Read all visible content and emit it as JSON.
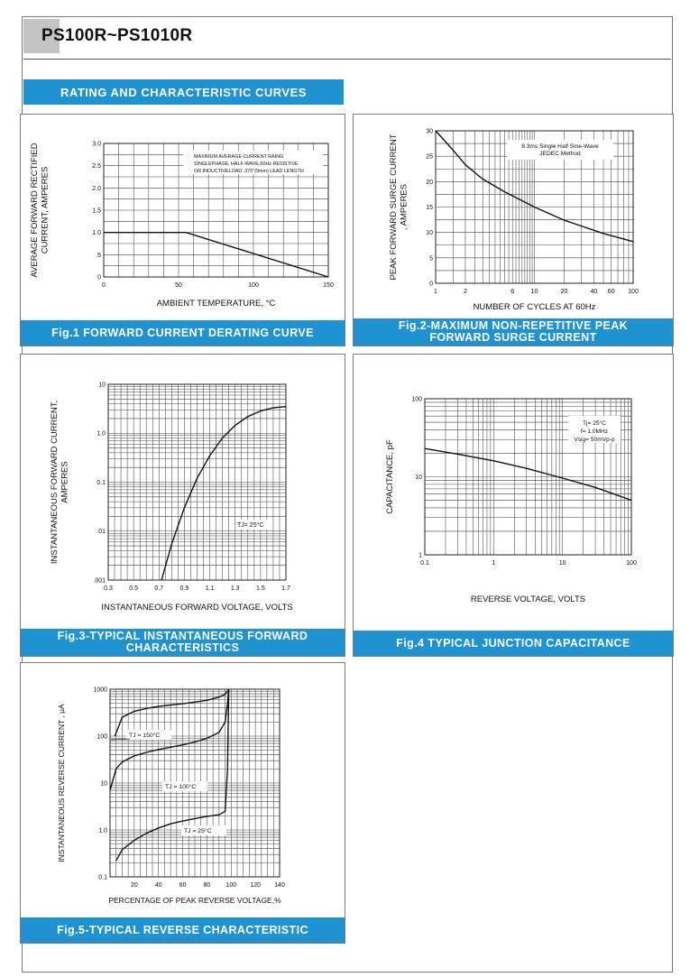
{
  "header": {
    "title": "PS100R~PS1010R",
    "section": "RATING AND CHARACTERISTIC CURVES"
  },
  "chart_data": [
    {
      "id": "fig1",
      "type": "line",
      "caption": "Fig.1 FORWARD CURRENT DERATING CURVE",
      "xlabel": "AMBIENT TEMPERATURE, °C",
      "ylabel": [
        "AVERAGE FORWARD RECTIFIED",
        "CURRENT, AMPERES"
      ],
      "xlim": [
        0,
        150
      ],
      "ylim": [
        0,
        3.0
      ],
      "xticks": [
        0,
        50,
        100,
        150
      ],
      "xtick_labels": [
        "0",
        "50",
        "100",
        "150"
      ],
      "yticks": [
        0,
        0.5,
        1.0,
        1.5,
        2.0,
        2.5,
        3.0
      ],
      "ytick_labels": [
        "0",
        ".5",
        "1.0",
        "1.5",
        "2.0",
        "2.5",
        "3.0"
      ],
      "annotation": [
        "MAXIMUM AVERAGE CURRENT RAING",
        "SINGLEPHASE, HALF-WAVE,60Hz RESISTIVE",
        "OR INDUCTIVELOAD .375\"(9mm) LEAD LENGTH"
      ],
      "series": [
        {
          "x": [
            0,
            55,
            150
          ],
          "y": [
            1.0,
            1.0,
            0
          ]
        }
      ]
    },
    {
      "id": "fig2",
      "type": "line",
      "caption": [
        "Fig.2-MAXIMUM NON-REPETITIVE PEAK",
        "FORWARD SURGE CURRENT"
      ],
      "xlabel": "NUMBER OF CYCLES AT 60Hz",
      "ylabel": [
        "PEAK FORWARD SURGE CURRENT",
        ", AMPERES"
      ],
      "xscale": "log",
      "xlim": [
        1,
        100
      ],
      "ylim": [
        0,
        30
      ],
      "xticks": [
        1,
        2,
        6,
        10,
        20,
        40,
        60,
        100
      ],
      "xtick_labels": [
        "1",
        "2",
        "6",
        "10",
        "20",
        "40",
        "60",
        "100"
      ],
      "yticks": [
        0,
        5,
        10,
        15,
        20,
        25,
        30
      ],
      "ytick_labels": [
        "0",
        "5",
        "10",
        "15",
        "20",
        "25",
        "30"
      ],
      "annotation": [
        "8.3ms Single Half Sine-Wave",
        "JEDEC Method"
      ],
      "series": [
        {
          "x": [
            1,
            1.5,
            2,
            3,
            5,
            10,
            20,
            50,
            100
          ],
          "y": [
            30,
            26.2,
            23.3,
            20.5,
            18,
            15,
            12.4,
            9.8,
            8.2
          ]
        }
      ]
    },
    {
      "id": "fig3",
      "type": "line",
      "caption": [
        "Fig.3-TYPICAL INSTANTANEOUS FORWARD",
        "CHARACTERISTICS"
      ],
      "xlabel": "INSTANTANEOUS FORWARD VOLTAGE, VOLTS",
      "ylabel": [
        "INSTANTANEOUS FORWARD CURRENT,",
        "AMPERES"
      ],
      "yscale": "log",
      "xlim": [
        0.3,
        1.7
      ],
      "ylim": [
        0.001,
        10
      ],
      "xticks": [
        0.3,
        0.5,
        0.7,
        0.9,
        1.1,
        1.3,
        1.5,
        1.7
      ],
      "xtick_labels": [
        "0.3",
        "0.5",
        "0.7",
        "0.9",
        "1.1",
        "1.3",
        "1.5",
        "1.7"
      ],
      "yticks": [
        0.001,
        0.01,
        0.1,
        1,
        10
      ],
      "ytick_labels": [
        ".001",
        ".01",
        "0.1",
        "1.0",
        "10"
      ],
      "annotation": "TJ= 25°C",
      "series": [
        {
          "x": [
            0.72,
            0.8,
            0.9,
            1.0,
            1.1,
            1.2,
            1.3,
            1.4,
            1.5,
            1.6,
            1.7
          ],
          "y": [
            0.001,
            0.0055,
            0.03,
            0.12,
            0.35,
            0.8,
            1.45,
            2.2,
            2.85,
            3.3,
            3.5
          ]
        }
      ]
    },
    {
      "id": "fig4",
      "type": "line",
      "caption": "Fig.4 TYPICAL JUNCTION CAPACITANCE",
      "xlabel": "REVERSE VOLTAGE, VOLTS",
      "ylabel": "CAPACITANCE, pF",
      "xscale": "log",
      "yscale": "log",
      "xlim": [
        0.1,
        100
      ],
      "ylim": [
        1,
        100
      ],
      "xticks": [
        0.1,
        1,
        10,
        100
      ],
      "xtick_labels": [
        "0.1",
        "1",
        "10",
        "100"
      ],
      "yticks": [
        1,
        10,
        100
      ],
      "ytick_labels": [
        "1",
        "10",
        "100"
      ],
      "annotation": [
        "Tj= 25°C",
        "f= 1.0MHz",
        "Vsig= 50mVp-p"
      ],
      "series": [
        {
          "x": [
            0.1,
            0.3,
            1,
            3,
            10,
            30,
            100
          ],
          "y": [
            23,
            19.5,
            16,
            12.8,
            9.6,
            7.3,
            5.0
          ]
        }
      ]
    },
    {
      "id": "fig5",
      "type": "line",
      "caption": "Fig.5-TYPICAL REVERSE CHARACTERISTIC",
      "xlabel": "PERCENTAGE OF PEAK REVERSE VOLTAGE,%",
      "ylabel": "INSTANTANEOUS REVERSE CURRENT , μA",
      "yscale": "log",
      "xlim": [
        0,
        140
      ],
      "ylim": [
        0.1,
        1000
      ],
      "xticks": [
        20,
        40,
        60,
        80,
        100,
        120,
        140
      ],
      "xtick_labels": [
        "20",
        "40",
        "60",
        "80",
        "100",
        "120",
        "140"
      ],
      "yticks": [
        0.1,
        1,
        10,
        100,
        1000
      ],
      "ytick_labels": [
        "0.1",
        "1.0",
        "10",
        "100",
        "1000"
      ],
      "series": [
        {
          "name": "TJ = 150°C",
          "x": [
            4,
            10,
            20,
            30,
            40,
            50,
            60,
            70,
            80,
            90,
            95,
            98
          ],
          "y": [
            100,
            250,
            340,
            390,
            430,
            460,
            490,
            530,
            580,
            680,
            780,
            980
          ]
        },
        {
          "name": "TJ = 100°C",
          "x": [
            0,
            5,
            10,
            20,
            30,
            40,
            50,
            60,
            70,
            80,
            90,
            95,
            97,
            98
          ],
          "y": [
            7,
            20,
            28,
            38,
            45,
            52,
            58,
            65,
            75,
            90,
            120,
            200,
            500,
            1000
          ]
        },
        {
          "name": "TJ = 25°C",
          "x": [
            5,
            10,
            20,
            30,
            40,
            50,
            60,
            70,
            80,
            90,
            95,
            97,
            98
          ],
          "y": [
            0.22,
            0.38,
            0.6,
            0.85,
            1.1,
            1.35,
            1.55,
            1.75,
            1.95,
            2.1,
            2.5,
            20,
            1000
          ]
        }
      ]
    }
  ]
}
